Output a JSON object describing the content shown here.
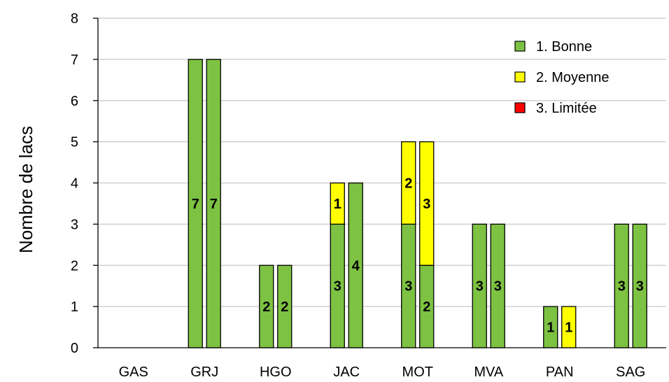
{
  "chart_data": {
    "type": "bar",
    "stacked": true,
    "grouped": true,
    "categories": [
      "GAS",
      "GRJ",
      "HGO",
      "JAC",
      "MOT",
      "MVA",
      "PAN",
      "SAG"
    ],
    "ylabel": "Nombre de lacs",
    "xlabel": "",
    "ylim": [
      0,
      8
    ],
    "yticks": [
      0,
      1,
      2,
      3,
      4,
      5,
      6,
      7,
      8
    ],
    "grid": true,
    "legend_position": "top-right",
    "series": [
      {
        "name": "1. Bonne",
        "color": "#7DC242"
      },
      {
        "name": "2. Moyenne",
        "color": "#FFFF00"
      },
      {
        "name": "3. Limitée",
        "color": "#FF0000"
      }
    ],
    "groups": [
      {
        "category": "GAS",
        "bars": [
          [
            0,
            0,
            0
          ],
          [
            0,
            0,
            0
          ]
        ]
      },
      {
        "category": "GRJ",
        "bars": [
          [
            7,
            0,
            0
          ],
          [
            7,
            0,
            0
          ]
        ]
      },
      {
        "category": "HGO",
        "bars": [
          [
            2,
            0,
            0
          ],
          [
            2,
            0,
            0
          ]
        ]
      },
      {
        "category": "JAC",
        "bars": [
          [
            3,
            1,
            0
          ],
          [
            4,
            0,
            0
          ]
        ]
      },
      {
        "category": "MOT",
        "bars": [
          [
            3,
            2,
            0
          ],
          [
            2,
            3,
            0
          ]
        ]
      },
      {
        "category": "MVA",
        "bars": [
          [
            3,
            0,
            0
          ],
          [
            3,
            0,
            0
          ]
        ]
      },
      {
        "category": "PAN",
        "bars": [
          [
            1,
            0,
            0
          ],
          [
            0,
            1,
            0
          ]
        ]
      },
      {
        "category": "SAG",
        "bars": [
          [
            3,
            0,
            0
          ],
          [
            3,
            0,
            0
          ]
        ]
      }
    ]
  }
}
